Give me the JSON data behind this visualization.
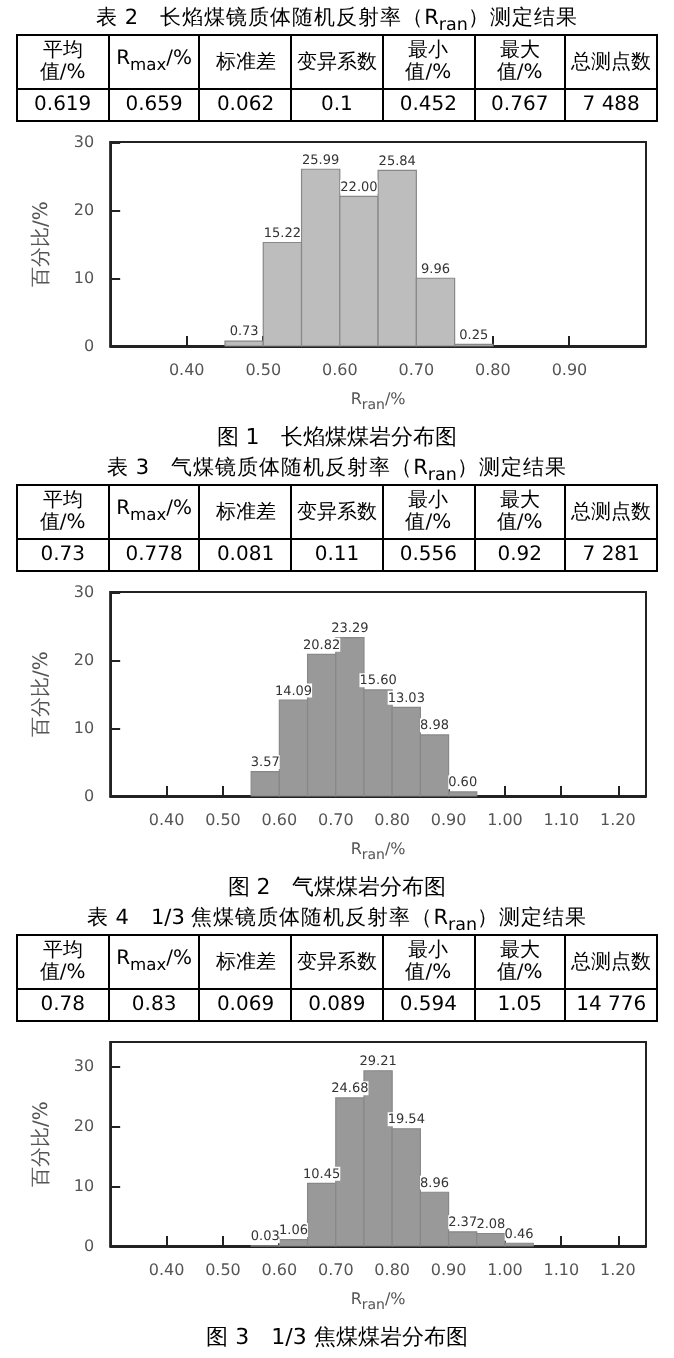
{
  "chart_data": [
    {
      "type": "other",
      "title": "表 2　长焰煤镜质体随机反射率（R$_{ran}$）测定结果",
      "categories": [
        "平均值/%",
        "R$_{max}$/%",
        "标准差",
        "变异系数",
        "最小值/%",
        "最大值/%",
        "总测点数"
      ],
      "value_labels": [
        "0.619",
        "0.659",
        "0.062",
        "0.1",
        "0.452",
        "0.767",
        "7 488"
      ]
    },
    {
      "type": "histogram",
      "bins": [
        0.45,
        0.5,
        0.55,
        0.6,
        0.65,
        0.7,
        0.75,
        0.8
      ],
      "values": [
        0.73,
        15.22,
        25.99,
        22.0,
        25.84,
        9.96,
        0.25
      ],
      "value_labels": [
        "0.73",
        "15.22",
        "25.99",
        "22.00",
        "25.84",
        "9.96",
        "0.25"
      ],
      "color": "#bdbdbd",
      "xlabel": "R$_{ran}$/%",
      "ylabel": "百分比/%",
      "xlim": [
        0.3,
        1.0
      ],
      "xticks": [
        {
          "value": 0.4,
          "label": "0.40"
        },
        {
          "value": 0.5,
          "label": "0.50"
        },
        {
          "value": 0.6,
          "label": "0.60"
        },
        {
          "value": 0.7,
          "label": "0.70"
        },
        {
          "value": 0.8,
          "label": "0.80"
        },
        {
          "value": 0.9,
          "label": "0.90"
        }
      ],
      "ylim": [
        0,
        30
      ],
      "yticks": [
        0,
        10,
        20,
        30
      ],
      "annotations": [
        "图 1　长焰煤煤岩分布图"
      ]
    },
    {
      "type": "other",
      "title": "表 3　气煤镜质体随机反射率（R$_{ran}$）测定结果",
      "categories": [
        "平均值/%",
        "R$_{max}$/%",
        "标准差",
        "变异系数",
        "最小值/%",
        "最大值/%",
        "总测点数"
      ],
      "value_labels": [
        "0.73",
        "0.778",
        "0.081",
        "0.11",
        "0.556",
        "0.92",
        "7 281"
      ]
    },
    {
      "type": "histogram",
      "bins": [
        0.55,
        0.6,
        0.65,
        0.7,
        0.75,
        0.8,
        0.85,
        0.9,
        0.95
      ],
      "values": [
        3.57,
        14.09,
        20.82,
        23.29,
        15.6,
        13.03,
        8.98,
        0.6
      ],
      "value_labels": [
        "3.57",
        "14.09",
        "20.82",
        "23.29",
        "15.60",
        "13.03",
        "8.98",
        "0.60"
      ],
      "color": "#999999",
      "xlabel": "R$_{ran}$/%",
      "ylabel": "百分比/%",
      "xlim": [
        0.3,
        1.25
      ],
      "xticks": [
        {
          "value": 0.4,
          "label": "0.40"
        },
        {
          "value": 0.5,
          "label": "0.50"
        },
        {
          "value": 0.6,
          "label": "0.60"
        },
        {
          "value": 0.7,
          "label": "0.70"
        },
        {
          "value": 0.8,
          "label": "0.80"
        },
        {
          "value": 0.9,
          "label": "0.90"
        },
        {
          "value": 1.0,
          "label": "1.00"
        },
        {
          "value": 1.1,
          "label": "1.10"
        },
        {
          "value": 1.2,
          "label": "1.20"
        }
      ],
      "ylim": [
        0,
        30
      ],
      "yticks": [
        0,
        10,
        20,
        30
      ],
      "annotations": [
        "图 2　气煤煤岩分布图"
      ]
    },
    {
      "type": "other",
      "title": "表 4　1/3 焦煤镜质体随机反射率（R$_{ran}$）测定结果",
      "categories": [
        "平均值/%",
        "R$_{max}$/%",
        "标准差",
        "变异系数",
        "最小值/%",
        "最大值/%",
        "总测点数"
      ],
      "value_labels": [
        "0.78",
        "0.83",
        "0.069",
        "0.089",
        "0.594",
        "1.05",
        "14 776"
      ]
    },
    {
      "type": "histogram",
      "bins": [
        0.55,
        0.6,
        0.65,
        0.7,
        0.75,
        0.8,
        0.85,
        0.9,
        0.95,
        1.0,
        1.05
      ],
      "values": [
        0.03,
        1.06,
        10.45,
        24.68,
        29.21,
        19.54,
        8.96,
        2.37,
        2.08,
        0.46
      ],
      "value_labels": [
        "0.03",
        "1.06",
        "10.45",
        "24.68",
        "29.21",
        "19.54",
        "8.96",
        "2.37",
        "2.08",
        "0.46"
      ],
      "color": "#999999",
      "xlabel": "R$_{ran}$/%",
      "ylabel": "百分比/%",
      "xlim": [
        0.3,
        1.25
      ],
      "xticks": [
        {
          "value": 0.4,
          "label": "0.40"
        },
        {
          "value": 0.5,
          "label": "0.50"
        },
        {
          "value": 0.6,
          "label": "0.60"
        },
        {
          "value": 0.7,
          "label": "0.70"
        },
        {
          "value": 0.8,
          "label": "0.80"
        },
        {
          "value": 0.9,
          "label": "0.90"
        },
        {
          "value": 1.0,
          "label": "1.00"
        },
        {
          "value": 1.1,
          "label": "1.10"
        },
        {
          "value": 1.2,
          "label": "1.20"
        }
      ],
      "ylim": [
        0,
        34
      ],
      "yticks": [
        0,
        10,
        20,
        30
      ],
      "annotations": [
        "图 3　1/3 焦煤煤岩分布图"
      ]
    }
  ]
}
